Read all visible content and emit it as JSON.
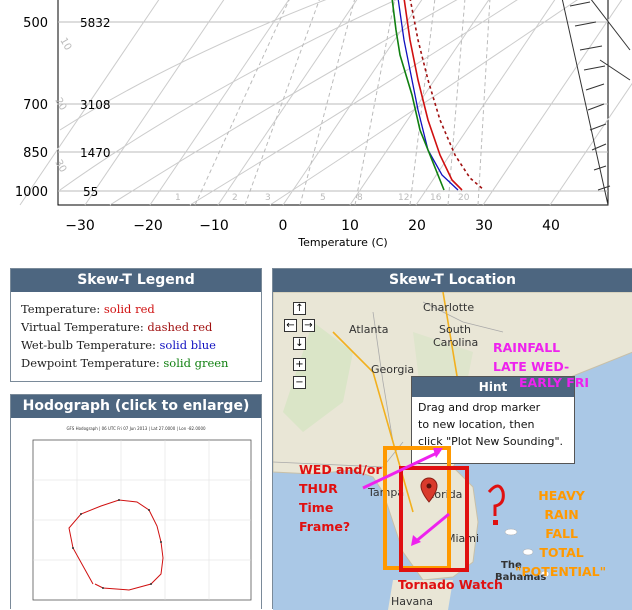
{
  "skewt": {
    "pressure_levels": [
      "500",
      "700",
      "850",
      "1000"
    ],
    "heights": [
      "5832",
      "3108",
      "1470",
      "55"
    ],
    "temp_ticks": [
      "−30",
      "−20",
      "−10",
      "0",
      "10",
      "20",
      "30",
      "40"
    ],
    "xlabel": "Temperature (C)",
    "mixing_ratio_labels": [
      "1",
      "2",
      "3",
      "5",
      "8",
      "12",
      "16",
      "20"
    ],
    "isotherm_labels": [
      "10",
      "20",
      "30"
    ]
  },
  "legend": {
    "title": "Skew-T Legend",
    "rows": [
      {
        "label": "Temperature:",
        "value": "solid red"
      },
      {
        "label": "Virtual Temperature:",
        "value": "dashed red"
      },
      {
        "label": "Wet-bulb Temperature:",
        "value": "solid blue"
      },
      {
        "label": "Dewpoint Temperature:",
        "value": "solid green"
      }
    ]
  },
  "hodograph": {
    "title": "Hodograph (click to enlarge)",
    "header": "GFS Hodograph | 06 UTC Fri 07 Jun 2013 | Lat 27.0000 | Lon -82.0000"
  },
  "location": {
    "title": "Skew-T Location",
    "nav": [
      "↑",
      "←",
      "→",
      "↓",
      "+",
      "−"
    ],
    "places": [
      "Charlotte",
      "Atlanta",
      "South",
      "Carolina",
      "Georgia",
      "Tampa",
      "Florida",
      "Miami",
      "The",
      "Bahamas",
      "Havana"
    ],
    "hint": {
      "title": "Hint",
      "line1": "Drag and drop marker",
      "line2": "to new location, then",
      "line3": "click \"Plot New Sounding\"."
    },
    "annotations": {
      "rainfall": [
        "RAINFALL",
        "LATE WED-",
        "EARLY FRI"
      ],
      "timeframe": [
        "WED and/or",
        "THUR",
        "Time",
        "Frame?"
      ],
      "heavy": [
        "HEAVY",
        "RAIN",
        "FALL",
        "TOTAL",
        "\"POTENTIAL\""
      ],
      "tornado": "Tornado Watch"
    }
  },
  "colors": {
    "panel_header": "#4d6680",
    "temperature": "#d01010",
    "wetbulb": "#1010c0",
    "dewpoint": "#108010",
    "annotation_red": "#e01010",
    "annotation_magenta": "#ee22ee",
    "annotation_orange": "#ff9900"
  }
}
